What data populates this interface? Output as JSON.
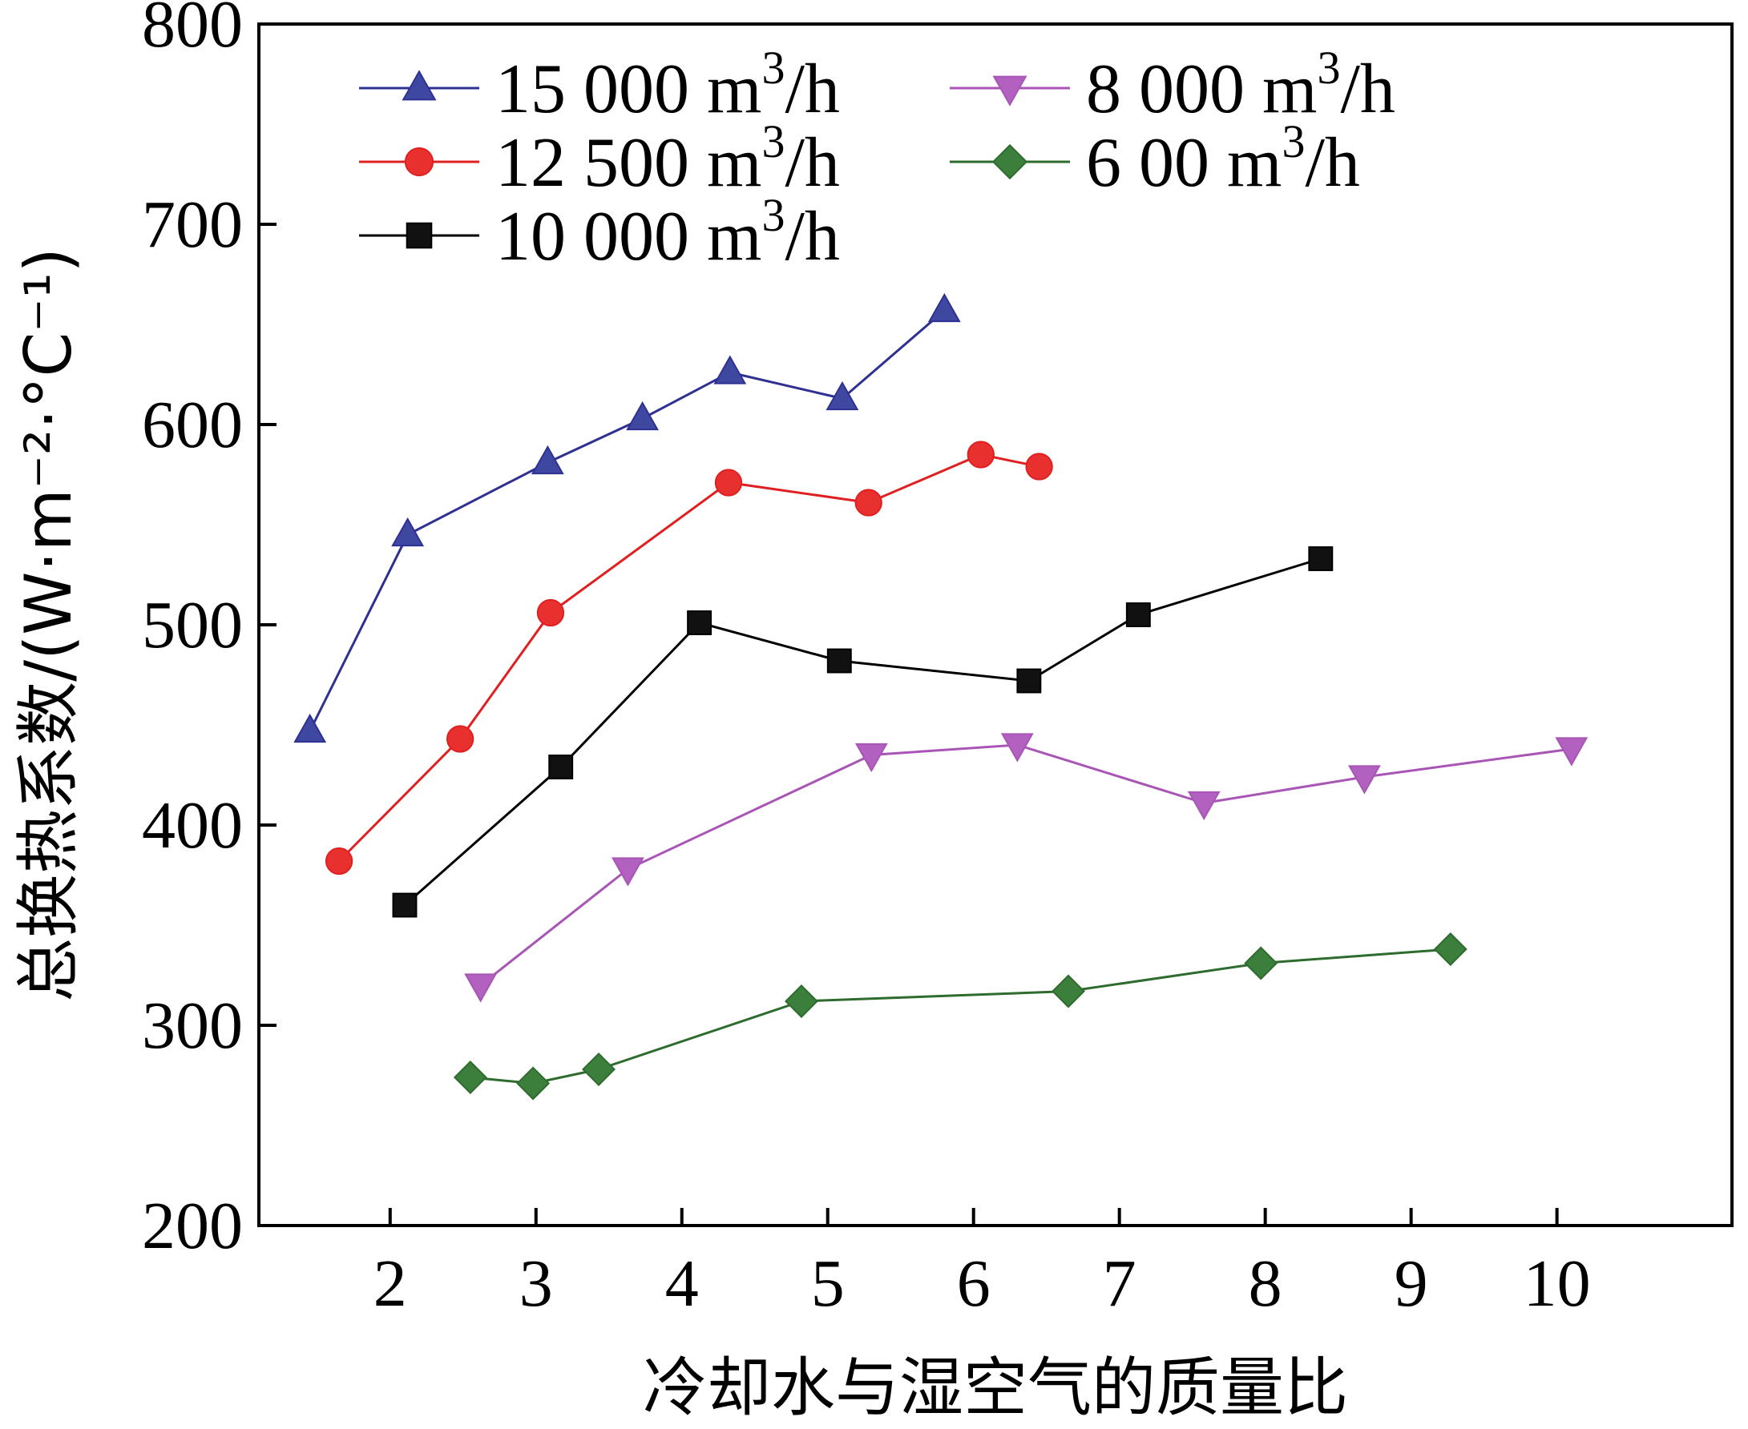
{
  "chart_data": {
    "type": "line",
    "title": "",
    "xlabel": "冷却水与湿空气的质量比",
    "ylabel": "总换热系数/(W·m⁻²·°C⁻¹)",
    "xlim": [
      1.1,
      11.2
    ],
    "ylim": [
      200,
      800
    ],
    "xticks": [
      2,
      3,
      4,
      5,
      6,
      7,
      8,
      9,
      10
    ],
    "yticks": [
      200,
      300,
      400,
      500,
      600,
      700,
      800
    ],
    "grid": false,
    "legend_position": "top",
    "series": [
      {
        "name": "15 000 m³/h",
        "name_main": "15 000 m",
        "name_sup": "3",
        "name_tail": "/h",
        "color": "#2e3192",
        "fill": "#3f48a0",
        "marker": "triangle-up",
        "x": [
          1.45,
          2.12,
          3.08,
          3.73,
          4.33,
          5.1,
          5.8
        ],
        "y": [
          447,
          545,
          581,
          603,
          626,
          613,
          657
        ]
      },
      {
        "name": "12 500 m³/h",
        "name_main": "12 500 m",
        "name_sup": "3",
        "name_tail": "/h",
        "color": "#e02020",
        "fill": "#e8312f",
        "marker": "circle",
        "x": [
          1.65,
          2.48,
          3.1,
          4.32,
          5.28,
          6.05,
          6.45
        ],
        "y": [
          382,
          443,
          506,
          571,
          561,
          585,
          579
        ]
      },
      {
        "name": "10 000 m³/h",
        "name_main": "10 000 m",
        "name_sup": "3",
        "name_tail": "/h",
        "color": "#000000",
        "fill": "#111111",
        "marker": "square",
        "x": [
          2.1,
          3.17,
          4.12,
          5.08,
          6.38,
          7.13,
          8.38
        ],
        "y": [
          360,
          429,
          501,
          482,
          472,
          505,
          533
        ]
      },
      {
        "name": "8 000 m³/h",
        "name_main": "8 000 m",
        "name_sup": "3",
        "name_tail": "/h",
        "color": "#a855b5",
        "fill": "#b261c0",
        "marker": "triangle-down",
        "x": [
          2.62,
          3.63,
          5.3,
          6.3,
          7.58,
          8.68,
          10.1
        ],
        "y": [
          320,
          378,
          435,
          440,
          411,
          424,
          438
        ]
      },
      {
        "name": "6 00 m³/h",
        "name_main": "6 00 m",
        "name_sup": "3",
        "name_tail": "/h",
        "color": "#2e6b2e",
        "fill": "#3c7f3c",
        "marker": "diamond",
        "x": [
          2.55,
          2.98,
          3.43,
          4.82,
          6.65,
          7.97,
          9.27
        ],
        "y": [
          274,
          271,
          278,
          312,
          317,
          331,
          338
        ]
      }
    ]
  }
}
